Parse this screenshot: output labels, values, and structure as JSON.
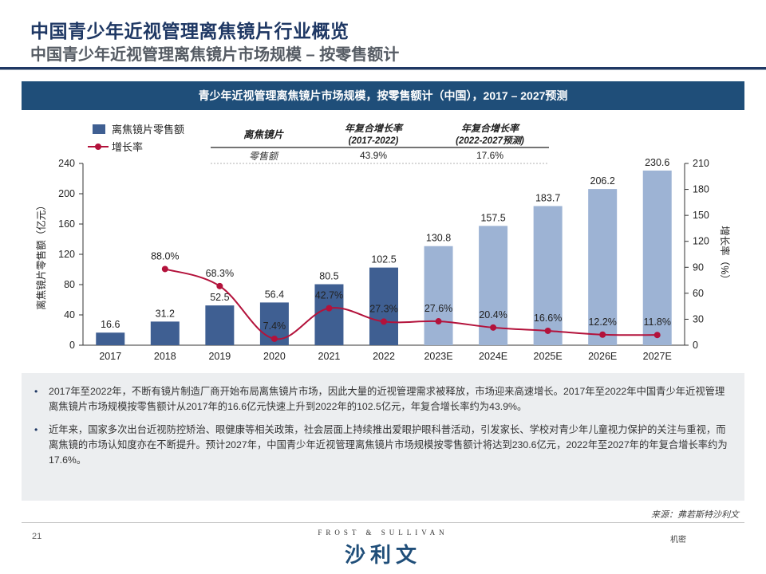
{
  "header": {
    "title": "中国青少年近视管理离焦镜片行业概览",
    "subtitle": "中国青少年近视管理离焦镜片市场规模 – 按零售额计"
  },
  "chart_banner": "青少年近视管理离焦镜片市场规模，按零售额计（中国），2017 – 2027预测",
  "legend": {
    "bar_label": "离焦镜片零售额",
    "line_label": "增长率"
  },
  "cagr_table": {
    "row_header": "离焦镜片",
    "col1_title": "年复合增长率",
    "col1_period": "(2017-2022)",
    "col2_title": "年复合增长率",
    "col2_period": "(2022-2027预测)",
    "row_label": "零售额",
    "col1_value": "43.9%",
    "col2_value": "17.6%"
  },
  "colors": {
    "bar_actual": "#3f5f92",
    "bar_forecast": "#9db3d4",
    "line": "#b3123b",
    "banner": "#1f4e79",
    "title": "#1f3864"
  },
  "chart_data": {
    "type": "bar",
    "categories": [
      "2017",
      "2018",
      "2019",
      "2020",
      "2021",
      "2022",
      "2023E",
      "2024E",
      "2025E",
      "2026E",
      "2027E"
    ],
    "series": [
      {
        "name": "离焦镜片零售额",
        "axis": "left",
        "values": [
          16.6,
          31.2,
          52.5,
          56.4,
          80.5,
          102.5,
          130.8,
          157.5,
          183.7,
          206.2,
          230.6
        ],
        "value_labels": [
          "16.6",
          "31.2",
          "52.5",
          "56.4",
          "80.5",
          "102.5",
          "130.8",
          "157.5",
          "183.7",
          "206.2",
          "230.6"
        ]
      },
      {
        "name": "增长率",
        "axis": "right",
        "type": "line",
        "values": [
          null,
          88.0,
          68.3,
          7.4,
          42.7,
          27.3,
          27.6,
          20.4,
          16.6,
          12.2,
          11.8
        ],
        "value_labels": [
          "",
          "88.0%",
          "68.3%",
          "7.4%",
          "42.7%",
          "27.3%",
          "27.6%",
          "20.4%",
          "16.6%",
          "12.2%",
          "11.8%"
        ]
      }
    ],
    "forecast_categories": [
      "2023E",
      "2024E",
      "2025E",
      "2026E",
      "2027E"
    ],
    "ylabel": "离焦镜片零售额（亿元）",
    "y2label": "增长率（%）",
    "ylim": [
      0,
      240
    ],
    "yticks": [
      0,
      40,
      80,
      120,
      160,
      200,
      240
    ],
    "y2lim": [
      0,
      210
    ],
    "y2ticks": [
      0,
      30,
      60,
      90,
      120,
      150,
      180,
      210
    ],
    "grid": false,
    "legend_position": "top-left"
  },
  "summary": {
    "bullets": [
      "2017年至2022年，不断有镜片制造厂商开始布局离焦镜片市场，因此大量的近视管理需求被释放，市场迎来高速增长。2017年至2022年中国青少年近视管理离焦镜片市场规模按零售额计从2017年的16.6亿元快速上升到2022年的102.5亿元，年复合增长率约为43.9%。",
      "近年来，国家多次出台近视防控矫治、眼健康等相关政策，社会层面上持续推出爱眼护眼科普活动，引发家长、学校对青少年儿童视力保护的关注与重视，而离焦镜的市场认知度亦在不断提升。预计2027年，中国青少年近视管理离焦镜片市场规模按零售额计将达到230.6亿元，2022年至2027年的年复合增长率约为17.6%。"
    ]
  },
  "footer": {
    "source": "来源：弗若斯特沙利文",
    "page_number": "21",
    "brand_en": "FROST & SULLIVAN",
    "brand_cn": "沙利文",
    "confidential": "机密"
  }
}
